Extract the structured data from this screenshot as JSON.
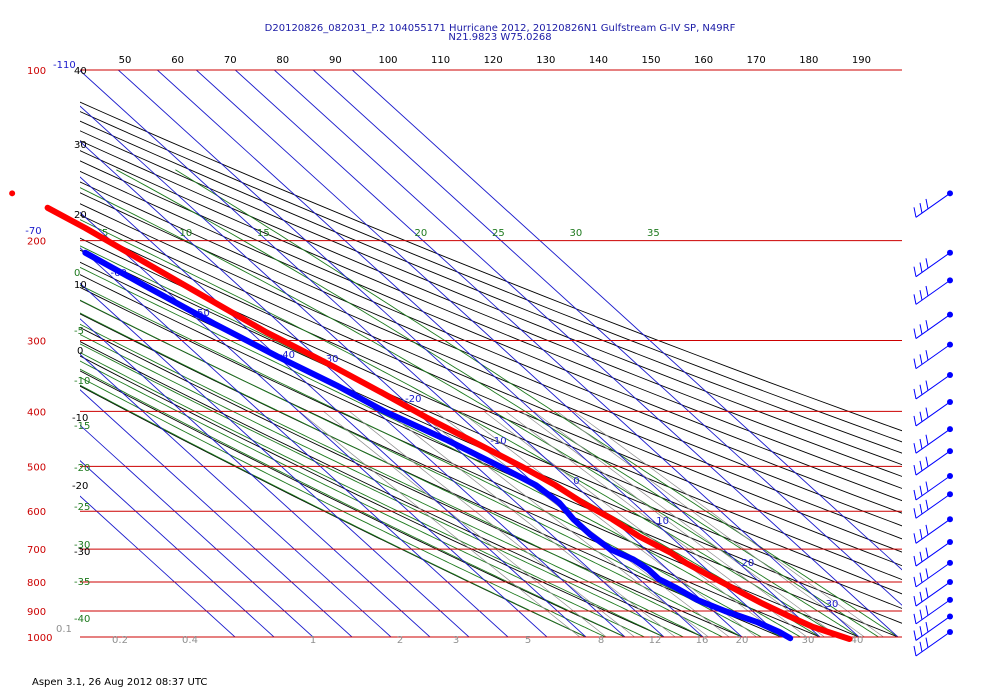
{
  "header": {
    "line1": "D20120826_082031_P.2 104055171 Hurricane 2012, 20120826N1 Gulfstream G-IV SP, N49RF",
    "line2": "N21.9823 W75.0268"
  },
  "footer": "Aspen 3.1, 26 Aug 2012  08:37 UTC",
  "colors": {
    "isobar": "#cc0000",
    "isotherm": "#1a1acc",
    "dry_adiabat": "#000000",
    "moist_adiabat": "#1e7a1e",
    "mixing_ratio": "#8f8f8f",
    "temperature": "#ff0000",
    "dewpoint": "#0000ff"
  },
  "chart_data": {
    "type": "skew-t",
    "pressure_labels": [
      "100",
      "200",
      "300",
      "400",
      "500",
      "600",
      "700",
      "800",
      "900",
      "1000"
    ],
    "top_scale_labels": [
      "50",
      "60",
      "70",
      "80",
      "90",
      "100",
      "110",
      "120",
      "130",
      "140",
      "150",
      "160",
      "170",
      "180",
      "190"
    ],
    "left_scale_labels": [
      "-110",
      "40",
      "30",
      "20",
      "10",
      "0",
      "-10",
      "-20",
      "-30"
    ],
    "green_left_labels": [
      "0",
      "-5",
      "-10",
      "-15",
      "-20",
      "-25",
      "-30",
      "-35",
      "-40"
    ],
    "isotherm_labels": [
      "-100",
      "-90",
      "-80",
      "-70",
      "-60",
      "-50",
      "-40",
      "-30",
      "-20",
      "-10",
      "0",
      "10",
      "20",
      "30"
    ],
    "moist_labels": [
      "5",
      "10",
      "15",
      "20",
      "25",
      "30",
      "35"
    ],
    "mixing_labels": [
      "0.1",
      "0.2",
      "0.4",
      "1",
      "2",
      "3",
      "5",
      "8",
      "12",
      "16",
      "20",
      "30",
      "40"
    ],
    "temperature": [
      {
        "p": 175,
        "t": -57
      },
      {
        "p": 190,
        "t": -53
      },
      {
        "p": 210,
        "t": -49
      },
      {
        "p": 250,
        "t": -42
      },
      {
        "p": 290,
        "t": -36
      },
      {
        "p": 330,
        "t": -29
      },
      {
        "p": 370,
        "t": -23.5
      },
      {
        "p": 410,
        "t": -19
      },
      {
        "p": 450,
        "t": -14
      },
      {
        "p": 500,
        "t": -8.5
      },
      {
        "p": 540,
        "t": -5
      },
      {
        "p": 580,
        "t": -3
      },
      {
        "p": 620,
        "t": 0
      },
      {
        "p": 665,
        "t": 2
      },
      {
        "p": 710,
        "t": 5.5
      },
      {
        "p": 740,
        "t": 6.5
      },
      {
        "p": 780,
        "t": 9
      },
      {
        "p": 820,
        "t": 11.5
      },
      {
        "p": 870,
        "t": 14.5
      },
      {
        "p": 920,
        "t": 18
      },
      {
        "p": 960,
        "t": 21
      },
      {
        "p": 1000,
        "t": 26
      },
      {
        "p": 1008,
        "t": 27
      }
    ],
    "dewpoint": [
      {
        "p": 210,
        "t": -60
      },
      {
        "p": 240,
        "t": -54
      },
      {
        "p": 280,
        "t": -47
      },
      {
        "p": 320,
        "t": -40
      },
      {
        "p": 360,
        "t": -33
      },
      {
        "p": 400,
        "t": -28
      },
      {
        "p": 450,
        "t": -20
      },
      {
        "p": 500,
        "t": -14
      },
      {
        "p": 540,
        "t": -10
      },
      {
        "p": 580,
        "t": -9
      },
      {
        "p": 620,
        "t": -10
      },
      {
        "p": 660,
        "t": -10
      },
      {
        "p": 700,
        "t": -9
      },
      {
        "p": 730,
        "t": -6
      },
      {
        "p": 760,
        "t": -5
      },
      {
        "p": 790,
        "t": -5
      },
      {
        "p": 820,
        "t": -3
      },
      {
        "p": 860,
        "t": -1
      },
      {
        "p": 900,
        "t": 3
      },
      {
        "p": 940,
        "t": 8
      },
      {
        "p": 980,
        "t": 11
      },
      {
        "p": 1005,
        "t": 12
      }
    ],
    "temperature_isolated_point": {
      "p": 165,
      "t": -62
    },
    "wind_barb_pressures": [
      165,
      210,
      235,
      270,
      305,
      345,
      385,
      430,
      470,
      520,
      560,
      620,
      680,
      740,
      800,
      860,
      920,
      980
    ]
  }
}
